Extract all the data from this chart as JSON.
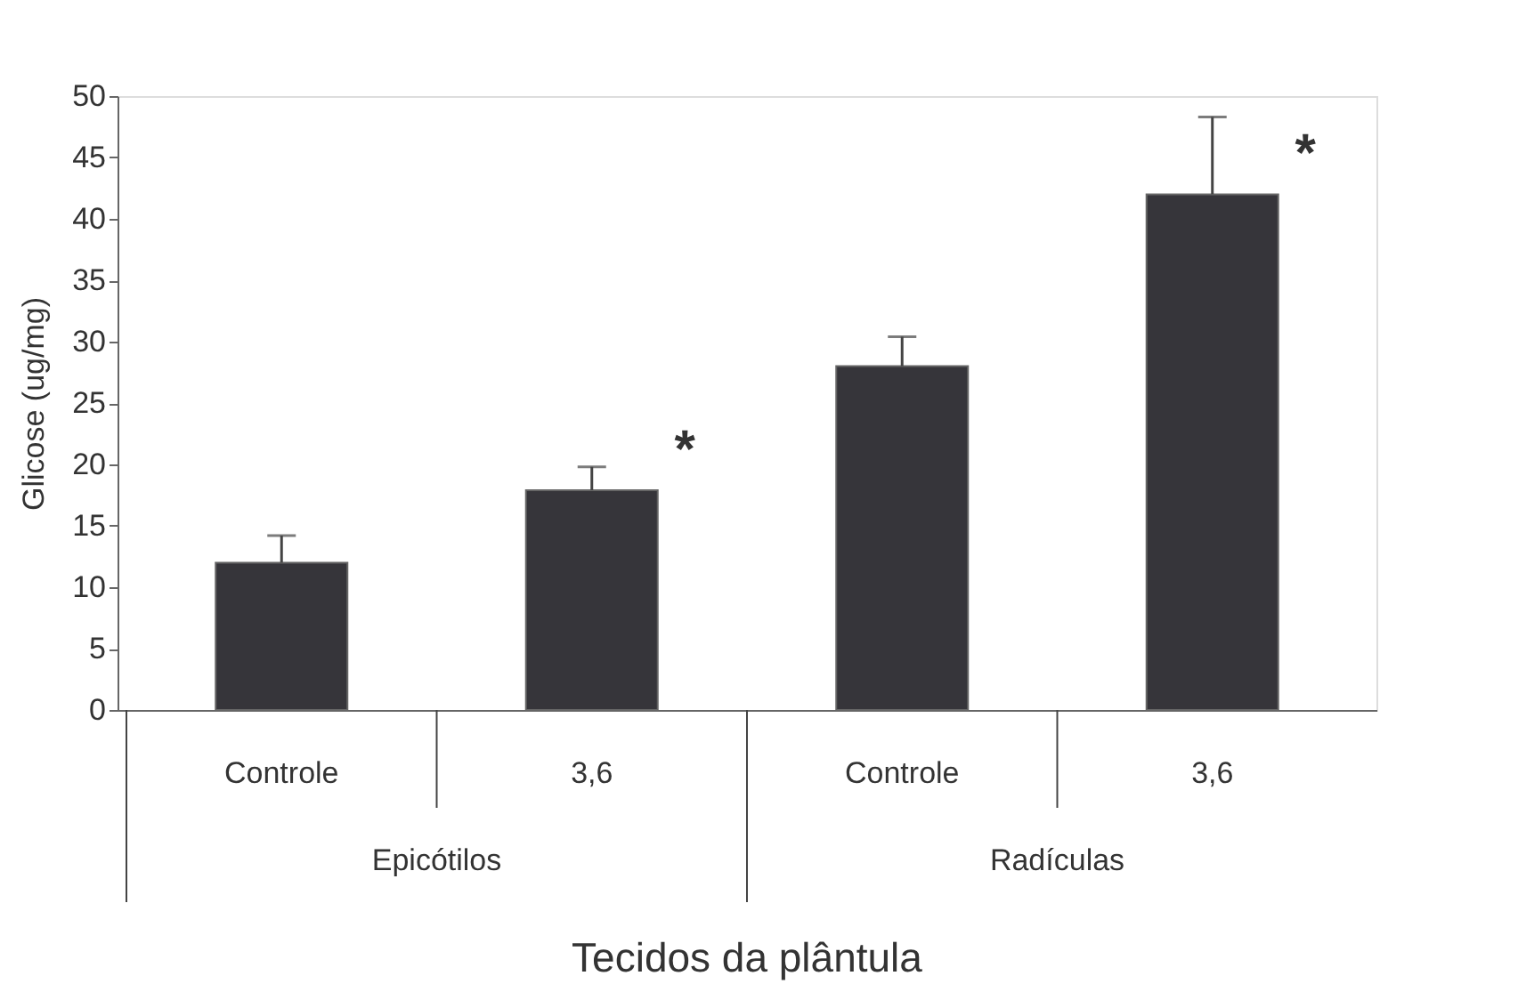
{
  "chart_data": {
    "type": "bar",
    "categories": [
      "Controle",
      "3,6",
      "Controle",
      "3,6"
    ],
    "values": [
      12,
      17.9,
      28.0,
      42.0
    ],
    "errors": [
      [
        12,
        14.2
      ],
      [
        17.9,
        19.8
      ],
      [
        28.0,
        30.4
      ],
      [
        42.0,
        48.3
      ]
    ],
    "color": "#36353a",
    "xlabel": "Tecidos da plântula",
    "ylabel": "Glicose (ug/mg)",
    "ylim": [
      0,
      50
    ],
    "yticks": [
      0,
      5,
      10,
      15,
      20,
      25,
      30,
      35,
      40,
      45,
      50
    ],
    "grid": false,
    "annotations": [
      "*",
      "*",
      "Epicótilos",
      "Radículas"
    ]
  }
}
